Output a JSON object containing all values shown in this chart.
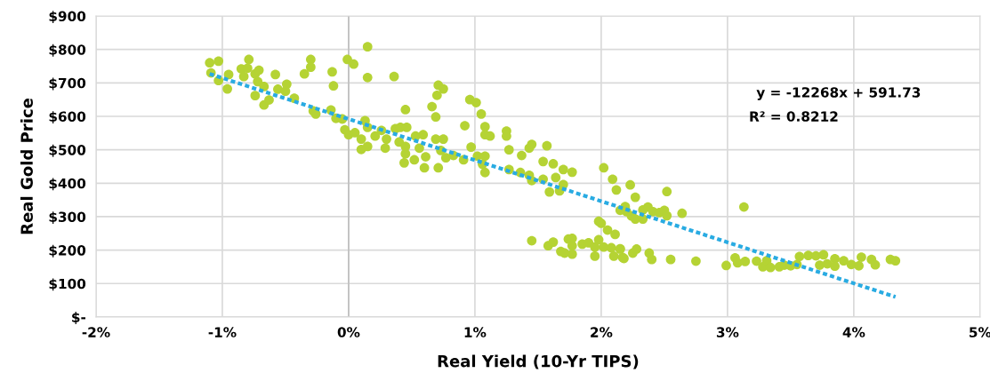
{
  "chart_data": {
    "type": "scatter",
    "xlabel": "Real Yield (10-Yr TIPS)",
    "ylabel": "Real Gold Price",
    "xlim": [
      -2,
      5
    ],
    "xticks": [
      {
        "value": -2,
        "label": "-2%"
      },
      {
        "value": -1,
        "label": "-1%"
      },
      {
        "value": 0,
        "label": "0%"
      },
      {
        "value": 1,
        "label": "1%"
      },
      {
        "value": 2,
        "label": "2%"
      },
      {
        "value": 3,
        "label": "3%"
      },
      {
        "value": 4,
        "label": "4%"
      },
      {
        "value": 5,
        "label": "5%"
      }
    ],
    "ylim": [
      0,
      900
    ],
    "yticks": [
      {
        "value": 0,
        "label": "$-"
      },
      {
        "value": 100,
        "label": "$100"
      },
      {
        "value": 200,
        "label": "$200"
      },
      {
        "value": 300,
        "label": "$300"
      },
      {
        "value": 400,
        "label": "$400"
      },
      {
        "value": 500,
        "label": "$500"
      },
      {
        "value": 600,
        "label": "$600"
      },
      {
        "value": 700,
        "label": "$700"
      },
      {
        "value": 800,
        "label": "$800"
      },
      {
        "value": 900,
        "label": "$900"
      }
    ],
    "grid": true,
    "marker": "circle",
    "annotations": [
      "y = -12268x + 591.73",
      "R² = 0.8212"
    ],
    "series": [
      {
        "color": "#b5d334",
        "x": [
          -1.1,
          -1.03,
          -1.09,
          -1.03,
          -0.96,
          -0.95,
          -0.79,
          -0.85,
          -0.8,
          -0.83,
          -0.74,
          -0.71,
          -0.72,
          -0.67,
          -0.74,
          -0.67,
          -0.63,
          -0.58,
          -0.56,
          -0.5,
          -0.49,
          -0.43,
          -0.35,
          -0.3,
          -0.3,
          -0.28,
          -0.26,
          -0.13,
          -0.12,
          -0.14,
          -0.1,
          -0.05,
          -0.01,
          0.04,
          0.15,
          0.15,
          0.36,
          -0.03,
          0.0,
          0.05,
          0.1,
          0.1,
          0.13,
          0.15,
          0.15,
          0.21,
          0.26,
          0.3,
          0.29,
          0.37,
          0.41,
          0.46,
          0.4,
          0.45,
          0.45,
          0.53,
          0.59,
          0.56,
          0.44,
          0.52,
          0.6,
          0.61,
          0.45,
          0.66,
          0.71,
          0.75,
          0.7,
          0.69,
          0.71,
          0.69,
          0.75,
          0.73,
          0.92,
          0.96,
          1.01,
          1.05,
          1.08,
          1.08,
          1.12,
          0.97,
          1.02,
          1.08,
          1.06,
          1.08,
          0.91,
          0.83,
          0.77,
          1.25,
          1.25,
          1.27,
          1.27,
          1.36,
          1.37,
          1.43,
          1.45,
          1.57,
          1.54,
          1.62,
          1.43,
          1.45,
          1.54,
          1.64,
          1.7,
          1.77,
          1.7,
          1.67,
          1.59,
          2.02,
          2.09,
          2.12,
          2.15,
          1.45,
          1.58,
          1.62,
          1.68,
          1.74,
          1.77,
          1.77,
          1.77,
          1.71,
          1.85,
          1.9,
          1.95,
          1.98,
          2.0,
          2.05,
          2.11,
          1.98,
          2.02,
          2.08,
          1.95,
          2.1,
          2.15,
          2.17,
          2.23,
          2.27,
          2.19,
          2.2,
          2.24,
          2.27,
          2.33,
          2.33,
          2.37,
          2.41,
          2.46,
          2.5,
          2.52,
          2.52,
          2.64,
          2.15,
          2.18,
          2.25,
          2.28,
          2.38,
          2.4,
          2.55,
          2.75,
          2.99,
          3.06,
          3.08,
          3.14,
          3.13,
          3.23,
          3.28,
          3.31,
          3.34,
          3.41,
          3.45,
          3.5,
          3.55,
          3.57,
          3.64,
          3.7,
          3.76,
          3.73,
          3.79,
          3.85,
          3.85,
          3.92,
          3.98,
          4.04,
          4.06,
          4.14,
          4.17,
          4.29,
          4.33
        ],
        "values": [
          760,
          765,
          730,
          707,
          682,
          725,
          770,
          742,
          744,
          719,
          727,
          738,
          704,
          689,
          662,
          634,
          649,
          725,
          681,
          675,
          696,
          654,
          727,
          770,
          747,
          616,
          607,
          733,
          691,
          619,
          594,
          592,
          770,
          756,
          808,
          716,
          719,
          560,
          545,
          551,
          532,
          501,
          587,
          567,
          510,
          541,
          558,
          532,
          505,
          563,
          567,
          567,
          523,
          510,
          488,
          541,
          545,
          505,
          461,
          470,
          446,
          479,
          620,
          629,
          693,
          682,
          663,
          598,
          446,
          532,
          532,
          498,
          572,
          650,
          641,
          607,
          569,
          545,
          541,
          508,
          481,
          481,
          457,
          432,
          470,
          483,
          476,
          556,
          541,
          500,
          441,
          432,
          483,
          505,
          516,
          512,
          465,
          458,
          424,
          408,
          412,
          417,
          441,
          433,
          396,
          377,
          374,
          446,
          412,
          380,
          319,
          228,
          213,
          224,
          196,
          233,
          235,
          213,
          188,
          191,
          218,
          222,
          209,
          286,
          280,
          260,
          247,
          231,
          209,
          207,
          182,
          182,
          204,
          178,
          395,
          358,
          330,
          315,
          302,
          293,
          293,
          320,
          329,
          315,
          312,
          319,
          303,
          375,
          310,
          203,
          175,
          191,
          203,
          191,
          172,
          172,
          167,
          154,
          177,
          162,
          166,
          329,
          167,
          150,
          168,
          148,
          150,
          155,
          153,
          157,
          181,
          184,
          183,
          186,
          155,
          159,
          174,
          152,
          168,
          157,
          153,
          179,
          172,
          156,
          172,
          168
        ]
      },
      {
        "type": "line",
        "color": "#29abe2",
        "line_style": "dotted",
        "marker": "none",
        "x": [
          -1.1,
          4.33
        ],
        "values": [
          727,
          60
        ]
      }
    ]
  }
}
